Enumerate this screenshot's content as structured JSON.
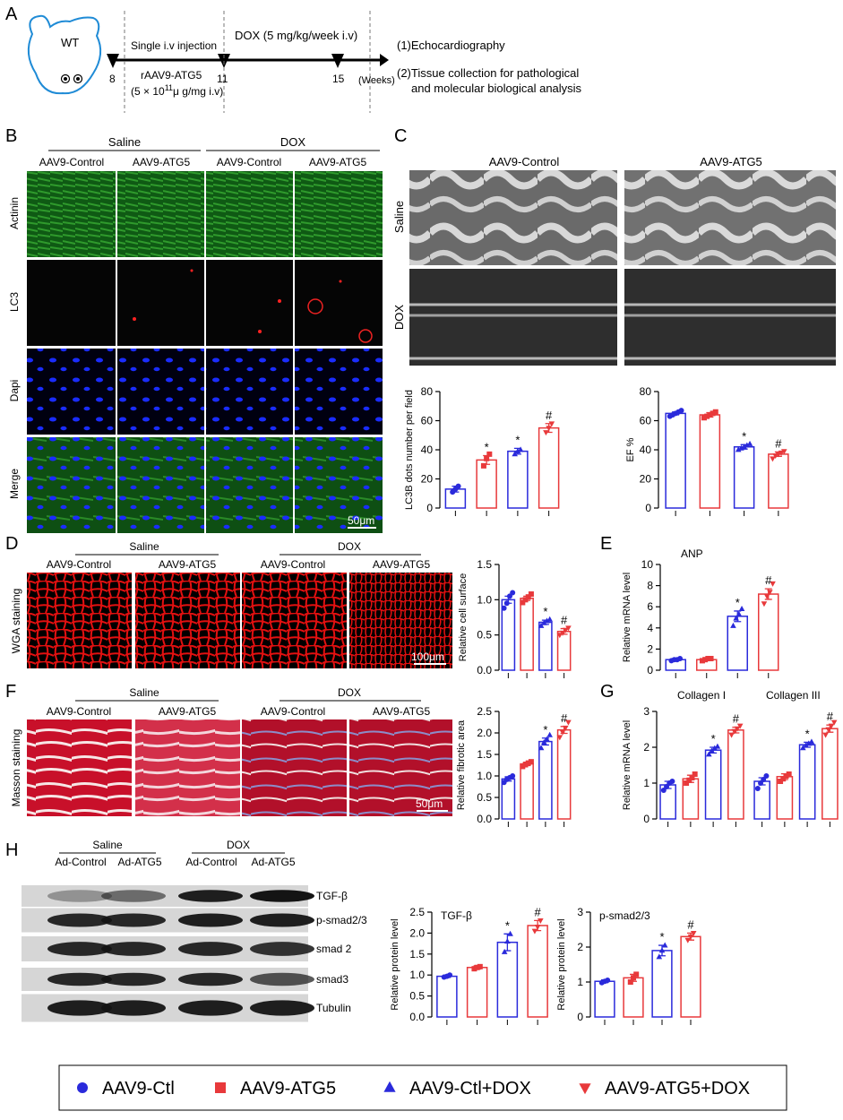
{
  "panels": {
    "A": "A",
    "B": "B",
    "C": "C",
    "D": "D",
    "E": "E",
    "F": "F",
    "G": "G",
    "H": "H"
  },
  "timeline": {
    "mouse_label": "WT",
    "marks": [
      "8",
      "11",
      "15"
    ],
    "single_injection": "Single i.v injection",
    "vector": "rAAV9-ATG5",
    "dose_main": "(5 × 10",
    "dose_sup": "11",
    "dose_tail": "μ g/mg i.v)",
    "dox_regimen": "DOX (5 mg/kg/week i.v)",
    "weeks": "(Weeks)",
    "outcome1": "(1)Echocardiography",
    "outcome2a": "(2)Tissue collection for pathological",
    "outcome2b": "and molecular biological analysis"
  },
  "panel_b": {
    "saline": "Saline",
    "dox": "DOX",
    "cols": [
      "AAV9-Control",
      "AAV9-ATG5",
      "AAV9-Control",
      "AAV9-ATG5"
    ],
    "rows": [
      "Actinin",
      "LC3",
      "Dapi",
      "Merge"
    ],
    "scale": "50μm"
  },
  "panel_c": {
    "cols": [
      "AAV9-Control",
      "AAV9-ATG5"
    ],
    "rows": [
      "Saline",
      "DOX"
    ]
  },
  "panel_d": {
    "saline": "Saline",
    "dox": "DOX",
    "cols": [
      "AAV9-Control",
      "AAV9-ATG5",
      "AAV9-Control",
      "AAV9-ATG5"
    ],
    "side": "WGA staining",
    "scale": "100μm"
  },
  "panel_f": {
    "saline": "Saline",
    "dox": "DOX",
    "cols": [
      "AAV9-Control",
      "AAV9-ATG5",
      "AAV9-Control",
      "AAV9-ATG5"
    ],
    "side": "Masson staining",
    "scale": "50μm"
  },
  "panel_h": {
    "saline": "Saline",
    "dox": "DOX",
    "cols": [
      "Ad-Control",
      "Ad-ATG5",
      "Ad-Control",
      "Ad-ATG5"
    ],
    "bands": [
      "TGF-β",
      "p-smad2/3",
      "smad 2",
      "smad3",
      "Tubulin"
    ]
  },
  "legend": [
    {
      "label": "AAV9-Ctl",
      "marker": "circle",
      "color": "#2a2adb"
    },
    {
      "label": "AAV9-ATG5",
      "marker": "square",
      "color": "#e8393b"
    },
    {
      "label": "AAV9-Ctl+DOX",
      "marker": "triangle-up",
      "color": "#2a2adb"
    },
    {
      "label": "AAV9-ATG5+DOX",
      "marker": "triangle-down",
      "color": "#e8393b"
    }
  ],
  "colors": {
    "blue": "#2a2adb",
    "red": "#e8393b"
  },
  "chart_data": [
    {
      "id": "lc3b",
      "type": "bar",
      "title": "",
      "ylabel": "LC3B dots number per field",
      "ylim": [
        0,
        80
      ],
      "yticks": [
        0,
        20,
        40,
        60,
        80
      ],
      "values": [
        13,
        33,
        39,
        55
      ],
      "errors": [
        2,
        3,
        2,
        3
      ],
      "annotations": [
        "",
        "*",
        "*",
        "#"
      ],
      "points": [
        [
          11,
          13,
          15
        ],
        [
          29,
          34,
          37
        ],
        [
          37,
          39,
          40
        ],
        [
          52,
          55,
          58
        ]
      ]
    },
    {
      "id": "ef",
      "type": "bar",
      "title": "",
      "ylabel": "EF %",
      "ylim": [
        0,
        80
      ],
      "yticks": [
        0,
        20,
        40,
        60,
        80
      ],
      "values": [
        65,
        64,
        42,
        37
      ],
      "errors": [
        1,
        1.5,
        1.5,
        1.5
      ],
      "annotations": [
        "",
        "",
        "*",
        "#"
      ],
      "points": [
        [
          63,
          64,
          65,
          66,
          67
        ],
        [
          62,
          63,
          64,
          65,
          66
        ],
        [
          40,
          41,
          42,
          43,
          44
        ],
        [
          34,
          36,
          37,
          38,
          39
        ]
      ]
    },
    {
      "id": "wga",
      "type": "bar",
      "title": "",
      "ylabel": "Relative cell surface",
      "ylim": [
        0,
        1.5
      ],
      "yticks": [
        0.0,
        0.5,
        1.0,
        1.5
      ],
      "ytick_labels": [
        "0.0",
        "0.5",
        "1.0",
        "1.5"
      ],
      "values": [
        1.0,
        1.02,
        0.68,
        0.55
      ],
      "errors": [
        0.05,
        0.03,
        0.03,
        0.04
      ],
      "annotations": [
        "",
        "",
        "*",
        "#"
      ],
      "points": [
        [
          0.88,
          0.95,
          1.05,
          1.1
        ],
        [
          0.96,
          1.0,
          1.04,
          1.08
        ],
        [
          0.63,
          0.67,
          0.7,
          0.72
        ],
        [
          0.5,
          0.53,
          0.57,
          0.6
        ]
      ]
    },
    {
      "id": "anp",
      "type": "bar",
      "title": "ANP",
      "ylabel": "Relative mRNA level",
      "ylim": [
        0,
        10
      ],
      "yticks": [
        0,
        2,
        4,
        6,
        8,
        10
      ],
      "values": [
        1.0,
        1.0,
        5.1,
        7.2
      ],
      "errors": [
        0.05,
        0.08,
        0.5,
        0.5
      ],
      "annotations": [
        "",
        "",
        "*",
        "#"
      ],
      "points": [
        [
          0.9,
          1.0,
          1.0,
          1.1
        ],
        [
          0.9,
          1.0,
          1.1,
          1.1
        ],
        [
          4.2,
          4.9,
          5.3,
          5.8
        ],
        [
          6.3,
          7.0,
          7.4,
          8.2
        ]
      ]
    },
    {
      "id": "masson",
      "type": "bar",
      "title": "",
      "ylabel": "Relative fibrotic area",
      "ylim": [
        0,
        2.5
      ],
      "yticks": [
        0,
        0.5,
        1.0,
        1.5,
        2.0,
        2.5
      ],
      "ytick_labels": [
        "0.0",
        "0.5",
        "1.0",
        "1.5",
        "2.0",
        "2.5"
      ],
      "values": [
        0.93,
        1.28,
        1.8,
        2.07
      ],
      "errors": [
        0.05,
        0.04,
        0.08,
        0.08
      ],
      "annotations": [
        "",
        "",
        "*",
        "#"
      ],
      "points": [
        [
          0.85,
          0.92,
          0.96,
          1.0
        ],
        [
          1.22,
          1.26,
          1.3,
          1.33
        ],
        [
          1.65,
          1.78,
          1.85,
          1.95
        ],
        [
          1.9,
          2.02,
          2.12,
          2.25
        ]
      ]
    },
    {
      "id": "collagen",
      "type": "bar",
      "title": "",
      "group_labels": [
        "Collagen I",
        "Collagen III"
      ],
      "ylabel": "Relative mRNA level",
      "ylim": [
        0,
        3
      ],
      "yticks": [
        0,
        1,
        2,
        3
      ],
      "values": [
        0.95,
        1.12,
        1.92,
        2.48,
        1.05,
        1.18,
        2.07,
        2.52
      ],
      "errors": [
        0.1,
        0.1,
        0.08,
        0.08,
        0.1,
        0.08,
        0.07,
        0.1
      ],
      "annotations": [
        "",
        "",
        "*",
        "#",
        "",
        "",
        "*",
        "#"
      ],
      "points": [
        [
          0.8,
          0.9,
          1.0,
          1.05
        ],
        [
          1.0,
          1.08,
          1.15,
          1.25
        ],
        [
          1.8,
          1.9,
          1.97,
          2.02
        ],
        [
          2.35,
          2.45,
          2.52,
          2.6
        ],
        [
          0.85,
          1.0,
          1.1,
          1.2
        ],
        [
          1.05,
          1.12,
          1.2,
          1.25
        ],
        [
          1.98,
          2.05,
          2.1,
          2.15
        ],
        [
          2.35,
          2.5,
          2.6,
          2.7
        ]
      ]
    },
    {
      "id": "tgfb",
      "type": "bar",
      "title": "TGF-β",
      "ylabel": "Relative protein level",
      "ylim": [
        0,
        2.5
      ],
      "yticks": [
        0,
        0.5,
        1.0,
        1.5,
        2.0,
        2.5
      ],
      "ytick_labels": [
        "0.0",
        "0.5",
        "1.0",
        "1.5",
        "2.0",
        "2.5"
      ],
      "values": [
        0.97,
        1.18,
        1.78,
        2.18
      ],
      "errors": [
        0.03,
        0.04,
        0.2,
        0.12
      ],
      "annotations": [
        "",
        "",
        "*",
        "#"
      ],
      "points": [
        [
          0.95,
          0.97,
          1.0
        ],
        [
          1.15,
          1.18,
          1.2
        ],
        [
          1.55,
          1.8,
          1.98
        ],
        [
          2.05,
          2.15,
          2.3
        ]
      ]
    },
    {
      "id": "psmad",
      "type": "bar",
      "title": "p-smad2/3",
      "ylabel": "Relative protein level",
      "ylim": [
        0,
        3
      ],
      "yticks": [
        0,
        1,
        2,
        3
      ],
      "values": [
        1.02,
        1.12,
        1.9,
        2.3
      ],
      "errors": [
        0.04,
        0.1,
        0.15,
        0.1
      ],
      "annotations": [
        "",
        "",
        "*",
        "#"
      ],
      "points": [
        [
          0.98,
          1.02,
          1.05
        ],
        [
          1.0,
          1.12,
          1.22
        ],
        [
          1.72,
          1.9,
          2.05
        ],
        [
          2.2,
          2.3,
          2.4
        ]
      ]
    }
  ]
}
